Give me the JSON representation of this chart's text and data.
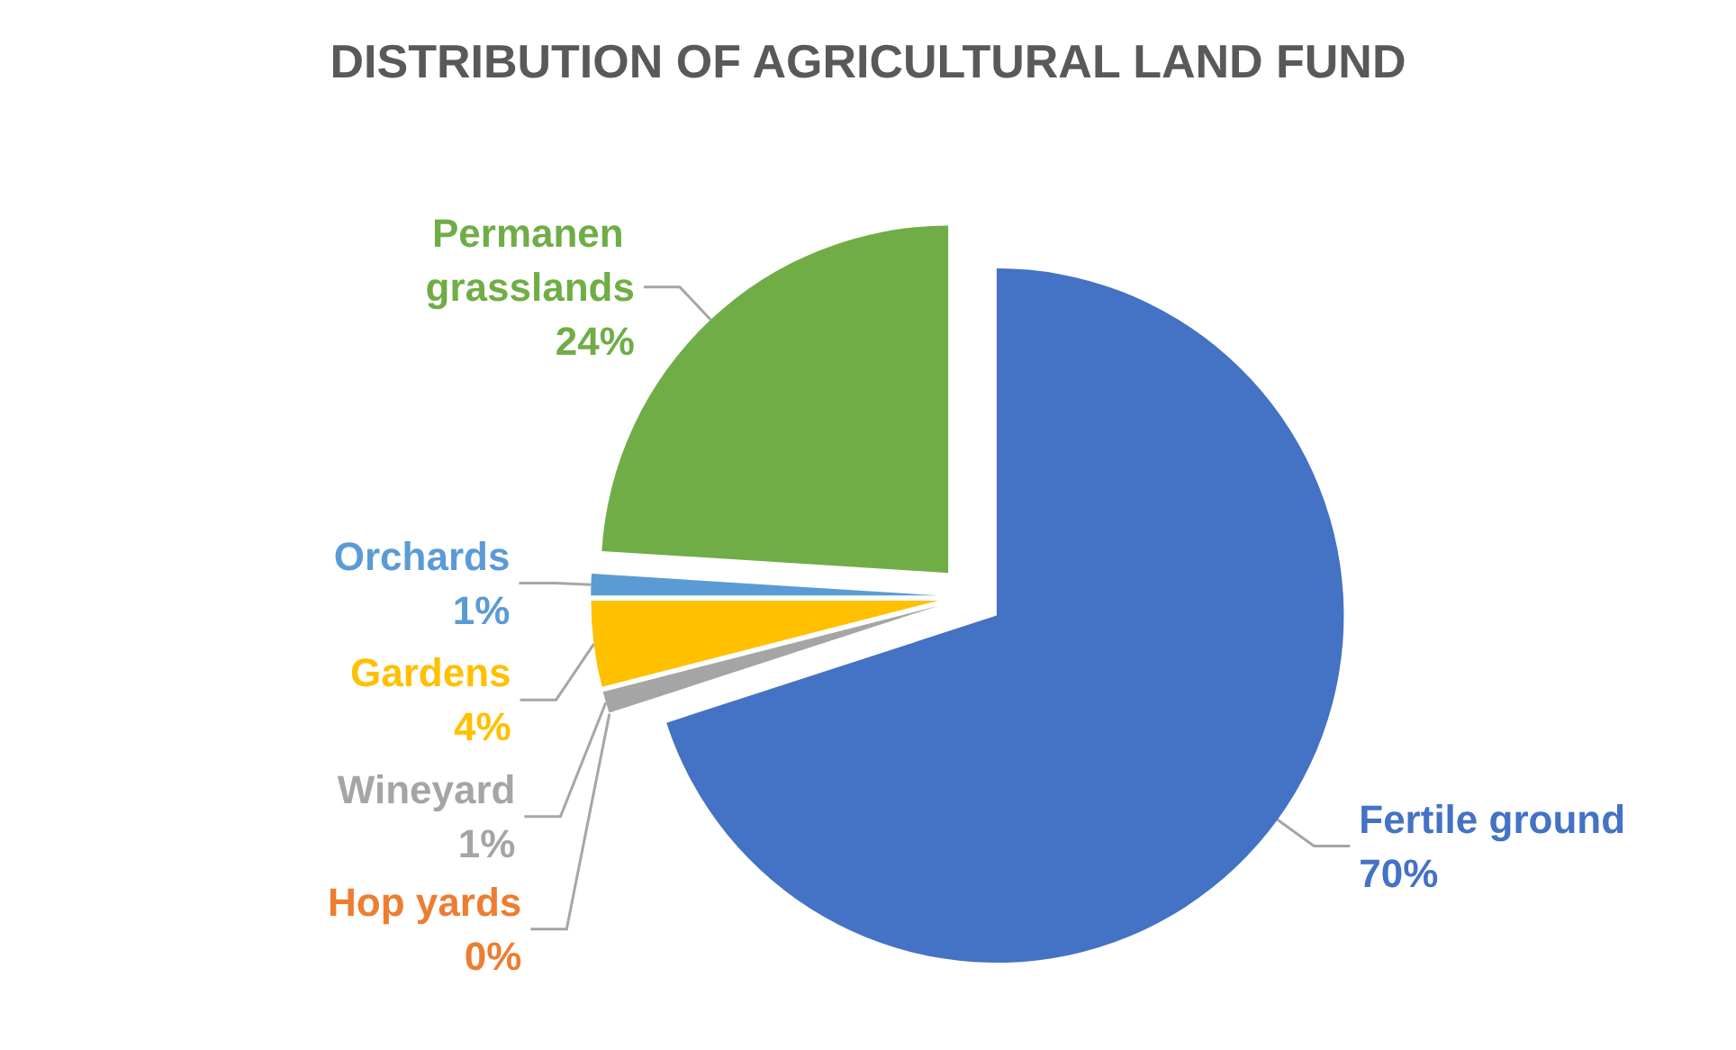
{
  "chart_data": {
    "type": "pie",
    "title": "DISTRIBUTION OF AGRICULTURAL LAND FUND",
    "categories": [
      "Fertile ground",
      "Hop yards",
      "Wineyard",
      "Gardens",
      "Orchards",
      "Permanen grasslands"
    ],
    "values": [
      70,
      0,
      1,
      4,
      1,
      24
    ],
    "value_labels": [
      "70%",
      "0%",
      "1%",
      "4%",
      "1%",
      "24%"
    ],
    "colors": [
      "#4472c4",
      "#ed7d31",
      "#a5a5a5",
      "#ffc000",
      "#5b9bd5",
      "#70ad47"
    ],
    "legend": false
  }
}
